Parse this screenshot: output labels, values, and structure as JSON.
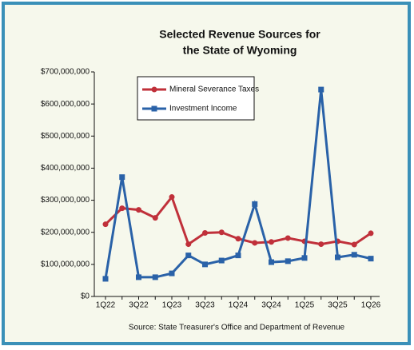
{
  "chart_data": {
    "type": "line",
    "title": "Selected Revenue Sources for",
    "subtitle": "the State of Wyoming",
    "source": "Source: State Treasurer's Office and Department of Revenue",
    "categories": [
      "1Q22",
      null,
      "3Q22",
      null,
      "1Q23",
      null,
      "3Q23",
      null,
      "1Q24",
      null,
      "3Q24",
      null,
      "1Q25",
      null,
      "3Q25",
      null,
      "1Q26"
    ],
    "series": [
      {
        "name": "Mineral Severance Taxes",
        "color": "#c0303a",
        "values": [
          225000000,
          275000000,
          270000000,
          245000000,
          310000000,
          163000000,
          198000000,
          200000000,
          180000000,
          167000000,
          170000000,
          182000000,
          172000000,
          163000000,
          172000000,
          162000000,
          197000000
        ]
      },
      {
        "name": "Investment Income",
        "color": "#2a62a8",
        "values": [
          55000000,
          372000000,
          60000000,
          60000000,
          72000000,
          128000000,
          100000000,
          112000000,
          128000000,
          288000000,
          107000000,
          110000000,
          120000000,
          645000000,
          122000000,
          130000000,
          118000000
        ]
      }
    ],
    "ylim": [
      0,
      700000000
    ],
    "yticks": [
      {
        "value": 0,
        "label": "$0"
      },
      {
        "value": 100000000,
        "label": "$100,000,000"
      },
      {
        "value": 200000000,
        "label": "$200,000,000"
      },
      {
        "value": 300000000,
        "label": "$300,000,000"
      },
      {
        "value": 400000000,
        "label": "$400,000,000"
      },
      {
        "value": 500000000,
        "label": "$500,000,000"
      },
      {
        "value": 600000000,
        "label": "$600,000,000"
      },
      {
        "value": 700000000,
        "label": "$700,000,000"
      }
    ],
    "legend": "upper-left"
  }
}
